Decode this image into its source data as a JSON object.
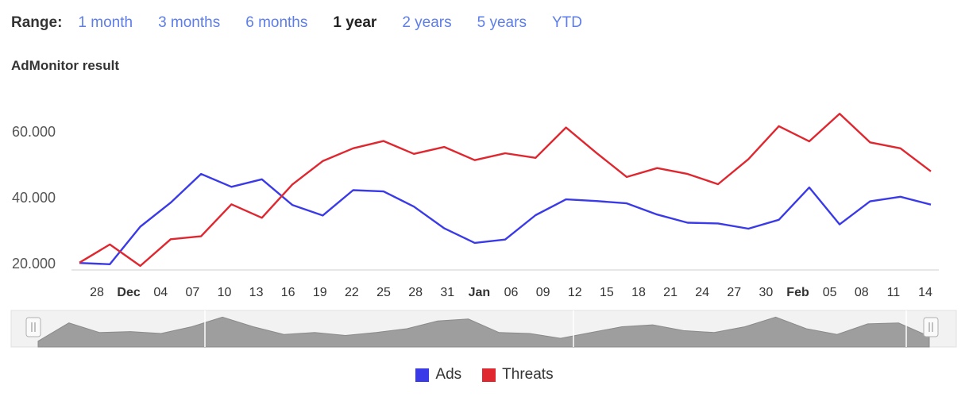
{
  "range_selector": {
    "label": "Range:",
    "options": [
      "1 month",
      "3 months",
      "6 months",
      "1 year",
      "2 years",
      "5 years",
      "YTD"
    ],
    "selected": "1 year"
  },
  "chart_data": {
    "type": "line",
    "title": "AdMonitor result",
    "xlabel": "",
    "ylabel": "",
    "ylim": [
      20000,
      60000
    ],
    "y_ticks": [
      "20.000",
      "40.000",
      "60.000"
    ],
    "x_ticks": [
      {
        "label": "28",
        "bold": false
      },
      {
        "label": "Dec",
        "bold": true
      },
      {
        "label": "04",
        "bold": false
      },
      {
        "label": "07",
        "bold": false
      },
      {
        "label": "10",
        "bold": false
      },
      {
        "label": "13",
        "bold": false
      },
      {
        "label": "16",
        "bold": false
      },
      {
        "label": "19",
        "bold": false
      },
      {
        "label": "22",
        "bold": false
      },
      {
        "label": "25",
        "bold": false
      },
      {
        "label": "28",
        "bold": false
      },
      {
        "label": "31",
        "bold": false
      },
      {
        "label": "Jan",
        "bold": true
      },
      {
        "label": "06",
        "bold": false
      },
      {
        "label": "09",
        "bold": false
      },
      {
        "label": "12",
        "bold": false
      },
      {
        "label": "15",
        "bold": false
      },
      {
        "label": "18",
        "bold": false
      },
      {
        "label": "21",
        "bold": false
      },
      {
        "label": "24",
        "bold": false
      },
      {
        "label": "27",
        "bold": false
      },
      {
        "label": "30",
        "bold": false
      },
      {
        "label": "Feb",
        "bold": true
      },
      {
        "label": "05",
        "bold": false
      },
      {
        "label": "08",
        "bold": false
      },
      {
        "label": "11",
        "bold": false
      },
      {
        "label": "14",
        "bold": false
      }
    ],
    "series": [
      {
        "name": "Ads",
        "color": "#3a3ae8",
        "values": [
          20200,
          19800,
          31200,
          38500,
          47200,
          43300,
          45600,
          37800,
          34600,
          42300,
          41900,
          37300,
          30700,
          26300,
          27300,
          34700,
          39500,
          39000,
          38300,
          34900,
          32400,
          32200,
          30600,
          33300,
          43100,
          31900,
          38900,
          40300,
          37900
        ]
      },
      {
        "name": "Threats",
        "color": "#e0262e",
        "values": [
          20300,
          25800,
          19300,
          27400,
          28300,
          38000,
          33900,
          44000,
          51100,
          55000,
          57200,
          53300,
          55400,
          51400,
          53500,
          52100,
          61300,
          53600,
          46300,
          49000,
          47200,
          44100,
          51700,
          61700,
          57100,
          65500,
          56800,
          55000,
          48000
        ]
      }
    ],
    "navigator_values": [
      31000,
      50000,
      40000,
      41000,
      39000,
      46000,
      56000,
      46000,
      38000,
      40000,
      37000,
      40000,
      44000,
      52000,
      54000,
      40000,
      39000,
      34000,
      40000,
      46000,
      48000,
      42000,
      40000,
      46000,
      56000,
      44000,
      38000,
      49000,
      50000,
      36000
    ],
    "legend": {
      "position": "bottom-center",
      "items": [
        "Ads",
        "Threats"
      ]
    },
    "grid": false
  }
}
